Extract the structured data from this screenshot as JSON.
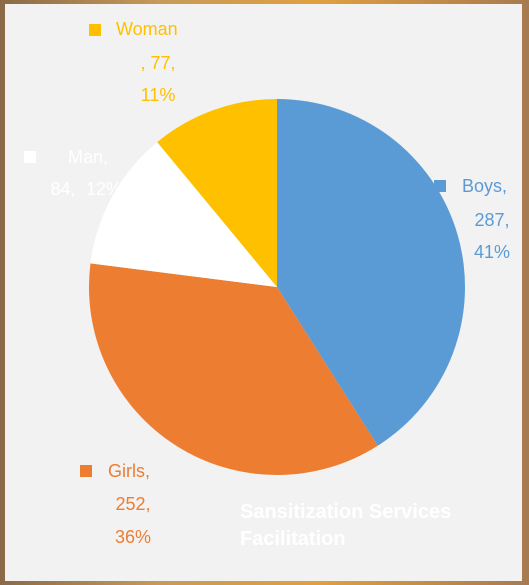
{
  "chart_data": {
    "type": "pie",
    "title": "Sansitization Services Facilitation",
    "categories": [
      "Boys,",
      "Girls,",
      "Man,",
      "Woman"
    ],
    "values": [
      287,
      252,
      84,
      77
    ],
    "value_labels": [
      "287,",
      "252,",
      "84,",
      ", 77,"
    ],
    "percents": [
      41,
      36,
      12,
      11
    ],
    "percent_labels": [
      "41%",
      "36%",
      "12%",
      "11%"
    ],
    "colors": [
      "#5b9bd5",
      "#ed7d31",
      "#ffffff",
      "#ffc000"
    ]
  }
}
